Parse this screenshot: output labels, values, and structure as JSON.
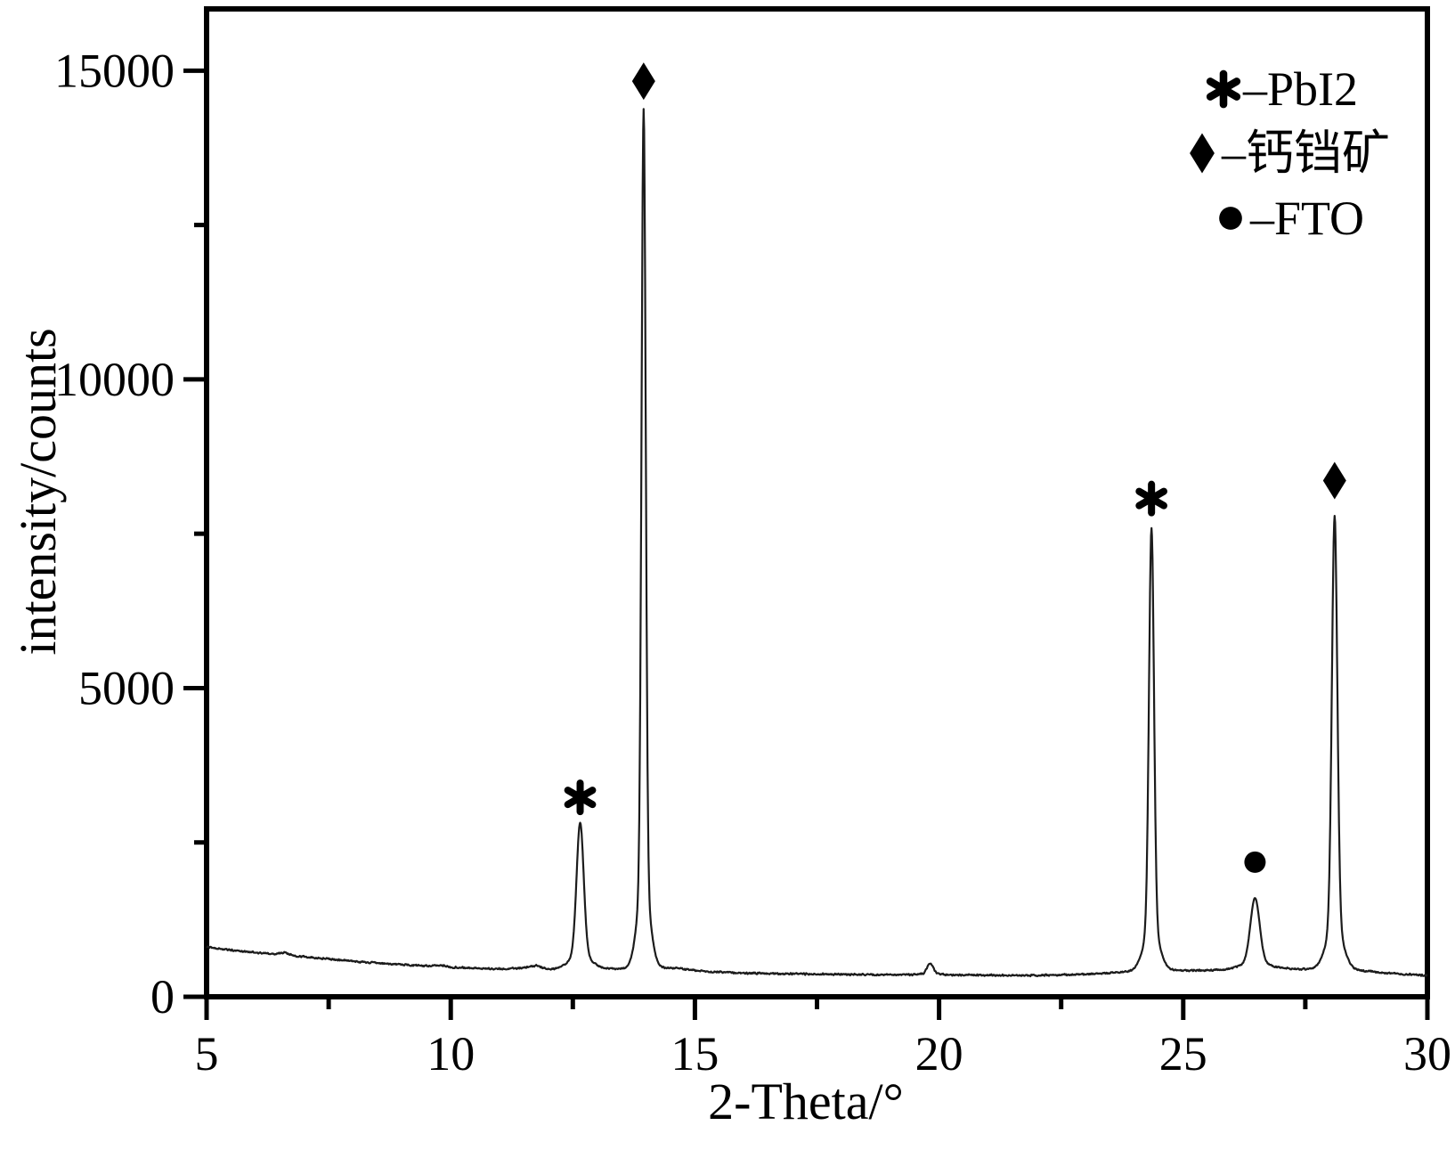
{
  "figure": {
    "background": "#ffffff",
    "frame_color": "#000000",
    "curve_color": "#1c1c1c",
    "marker_color": "#000000"
  },
  "chart_data": {
    "type": "line",
    "title": "",
    "xlabel": "2-Theta/°",
    "ylabel": "intensity/counts",
    "xlim": [
      5,
      30
    ],
    "ylim": [
      0,
      16000
    ],
    "grid": false,
    "xticks": {
      "major": [
        5,
        10,
        15,
        20,
        25,
        30
      ],
      "labels": [
        "5",
        "10",
        "15",
        "20",
        "25",
        "30"
      ],
      "minor": [
        7.5,
        12.5,
        17.5,
        22.5,
        27.5
      ]
    },
    "yticks": {
      "major": [
        0,
        5000,
        10000,
        15000
      ],
      "labels": [
        "0",
        "5000",
        "10000",
        "15000"
      ],
      "minor": [
        2500,
        7500,
        12500
      ]
    },
    "legend": {
      "position": "top-right",
      "entries": [
        {
          "symbol": "asterisk",
          "label": "–PbI2"
        },
        {
          "symbol": "diamond",
          "label": "–钙铛矿"
        },
        {
          "symbol": "circle",
          "label": "–FTO"
        }
      ]
    },
    "series_name": "XRD pattern",
    "baseline_points": [
      [
        5.0,
        810
      ],
      [
        5.3,
        775
      ],
      [
        5.6,
        745
      ],
      [
        6.0,
        715
      ],
      [
        6.4,
        695
      ],
      [
        6.6,
        715
      ],
      [
        6.8,
        665
      ],
      [
        7.2,
        635
      ],
      [
        7.6,
        605
      ],
      [
        8.0,
        575
      ],
      [
        8.5,
        545
      ],
      [
        9.0,
        520
      ],
      [
        9.5,
        498
      ],
      [
        9.8,
        512
      ],
      [
        10.0,
        478
      ],
      [
        10.5,
        462
      ],
      [
        11.0,
        452
      ],
      [
        11.4,
        462
      ],
      [
        11.75,
        505
      ],
      [
        12.0,
        448
      ],
      [
        12.5,
        442
      ],
      [
        13.1,
        450
      ],
      [
        14.6,
        468
      ],
      [
        15.2,
        408
      ],
      [
        16.0,
        385
      ],
      [
        17.0,
        370
      ],
      [
        18.0,
        362
      ],
      [
        19.0,
        356
      ],
      [
        20.0,
        354
      ],
      [
        21.0,
        350
      ],
      [
        22.0,
        348
      ],
      [
        23.0,
        362
      ],
      [
        23.7,
        398
      ],
      [
        24.0,
        415
      ],
      [
        24.9,
        428
      ],
      [
        25.5,
        428
      ],
      [
        26.0,
        438
      ],
      [
        27.0,
        452
      ],
      [
        27.6,
        448
      ],
      [
        28.6,
        428
      ],
      [
        29.0,
        396
      ],
      [
        29.5,
        366
      ],
      [
        30.0,
        344
      ]
    ],
    "peaks": [
      {
        "two_theta": 12.65,
        "intensity": 2820,
        "phase": "PbI2",
        "marker": "asterisk",
        "marker_y": 3230,
        "fwhm": 0.17
      },
      {
        "two_theta": 13.95,
        "intensity": 14380,
        "phase": "钙铛矿",
        "marker": "diamond",
        "marker_y": 14830,
        "fwhm": 0.1
      },
      {
        "two_theta": 19.82,
        "intensity": 540,
        "phase": "",
        "marker": null,
        "marker_y": null,
        "fwhm": 0.15
      },
      {
        "two_theta": 24.35,
        "intensity": 7590,
        "phase": "PbI2",
        "marker": "asterisk",
        "marker_y": 8070,
        "fwhm": 0.12
      },
      {
        "two_theta": 26.47,
        "intensity": 1600,
        "phase": "FTO",
        "marker": "circle",
        "marker_y": 2180,
        "fwhm": 0.22
      },
      {
        "two_theta": 28.1,
        "intensity": 7790,
        "phase": "钙铛矿",
        "marker": "diamond",
        "marker_y": 8360,
        "fwhm": 0.13
      }
    ],
    "noise_amplitude": 17
  }
}
